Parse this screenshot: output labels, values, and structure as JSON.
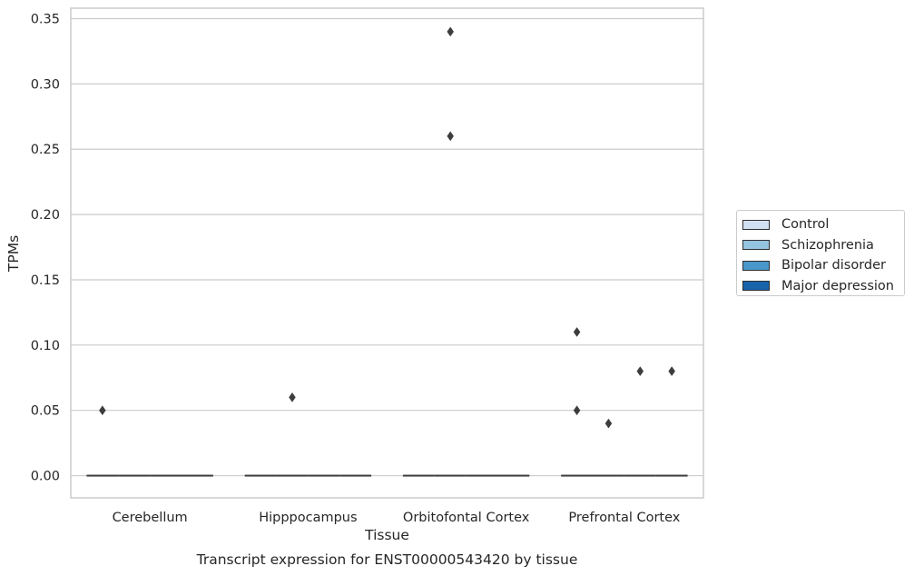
{
  "chart_data": {
    "type": "box",
    "xlabel": "Tissue",
    "ylabel": "TPMs",
    "caption": "Transcript expression for ENST00000543420 by tissue",
    "ylim": [
      -0.017,
      0.358
    ],
    "yticks": [
      "0.00",
      "0.05",
      "0.10",
      "0.15",
      "0.20",
      "0.25",
      "0.30",
      "0.35"
    ],
    "ytick_values": [
      0,
      0.05,
      0.1,
      0.15,
      0.2,
      0.25,
      0.3,
      0.35
    ],
    "categories": [
      "Cerebellum",
      "Hipppocampus",
      "Orbitofontal Cortex",
      "Prefrontal Cortex"
    ],
    "grid": "horizontal",
    "legend_position": "outside-right",
    "series": [
      {
        "name": "Control",
        "color": "#d0e1f2",
        "median": [
          0,
          0,
          0,
          0
        ],
        "outliers": [
          [
            0.05
          ],
          [],
          [],
          [
            0.11,
            0.05
          ]
        ]
      },
      {
        "name": "Schizophrenia",
        "color": "#94c4df",
        "median": [
          0,
          0,
          0,
          0
        ],
        "outliers": [
          [],
          [
            0.06
          ],
          [
            0.34,
            0.26
          ],
          [
            0.04
          ]
        ]
      },
      {
        "name": "Bipolar disorder",
        "color": "#4a98c9",
        "median": [
          0,
          0,
          0,
          0
        ],
        "outliers": [
          [],
          [],
          [],
          [
            0.08
          ]
        ]
      },
      {
        "name": "Major depression",
        "color": "#1764ab",
        "median": [
          0,
          0,
          0,
          0
        ],
        "outliers": [
          [],
          [],
          [],
          [
            0.08
          ]
        ]
      }
    ]
  }
}
